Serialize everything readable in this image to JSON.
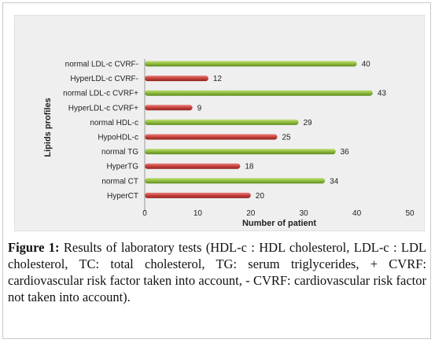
{
  "caption": {
    "label": "Figure 1:",
    "text": " Results of laboratory tests (HDL-c : HDL cholesterol, LDL-c : LDL cholesterol, TC: total cholesterol, TG: serum triglycerides, + CVRF: cardiovascular risk factor taken into account, - CVRF: cardiovascular risk factor not taken into account)."
  },
  "colors": {
    "green": "#8dbb3c",
    "red": "#c8413d",
    "frame_bg": "#efefef"
  },
  "chart_data": {
    "type": "bar",
    "orientation": "horizontal",
    "title": "",
    "xlabel": "Number of patient",
    "ylabel": "Lipids profiles",
    "xlim": [
      0,
      50
    ],
    "xticks": [
      0,
      10,
      20,
      30,
      40,
      50
    ],
    "grid": false,
    "legend": "none",
    "categories": [
      "normal LDL-c CVRF-",
      "HyperLDL-c CVRF-",
      "normal LDL-c CVRF+",
      "HyperLDL-c CVRF+",
      "normal HDL-c",
      "HypoHDL-c",
      "normal TG",
      "HyperTG",
      "normal CT",
      "HyperCT"
    ],
    "values": [
      40,
      12,
      43,
      9,
      29,
      25,
      36,
      18,
      34,
      20
    ],
    "bar_colors": [
      "green",
      "red",
      "green",
      "red",
      "green",
      "red",
      "green",
      "red",
      "green",
      "red"
    ]
  }
}
